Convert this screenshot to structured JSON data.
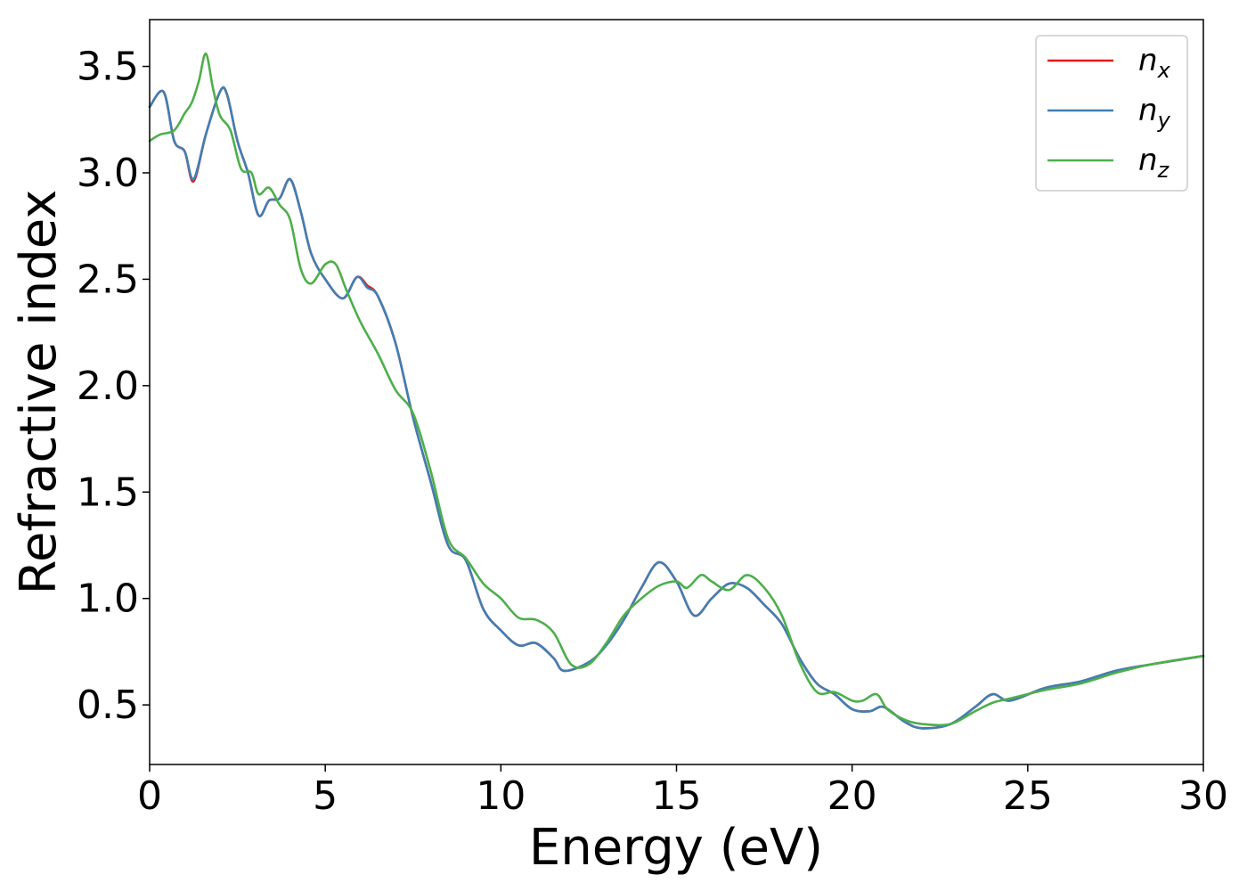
{
  "chart_data": {
    "type": "line",
    "title": "",
    "xlabel": "Energy (eV)",
    "ylabel": "Refractive index",
    "xlim": [
      0,
      30
    ],
    "ylim": [
      0.22,
      3.72
    ],
    "xticks": [
      0,
      5,
      10,
      15,
      20,
      25,
      30
    ],
    "xtick_labels": [
      "0",
      "5",
      "10",
      "15",
      "20",
      "25",
      "30"
    ],
    "yticks": [
      0.5,
      1.0,
      1.5,
      2.0,
      2.5,
      3.0,
      3.5
    ],
    "ytick_labels": [
      "0.5",
      "1.0",
      "1.5",
      "2.0",
      "2.5",
      "3.0",
      "3.5"
    ],
    "grid": false,
    "legend_position": "top-right",
    "series": [
      {
        "name": "n",
        "subscript": "x",
        "color": "#e41a1c",
        "x": [
          0,
          0.4,
          0.7,
          1.0,
          1.25,
          1.6,
          2.0,
          2.2,
          2.5,
          2.8,
          3.1,
          3.4,
          3.7,
          4.0,
          4.3,
          4.6,
          5.0,
          5.5,
          5.9,
          6.2,
          6.5,
          7.0,
          7.5,
          8.0,
          8.5,
          9.0,
          9.5,
          10.0,
          10.5,
          11.0,
          11.5,
          11.8,
          12.5,
          13.0,
          13.5,
          14.0,
          14.5,
          15.0,
          15.5,
          16.0,
          16.5,
          17.0,
          17.5,
          18.0,
          18.5,
          19.0,
          19.5,
          20.0,
          20.5,
          20.9,
          21.5,
          22.0,
          22.8,
          23.5,
          24.0,
          24.5,
          25.5,
          26.5,
          27.5,
          28.5,
          30.0
        ],
        "y": [
          3.31,
          3.38,
          3.15,
          3.1,
          2.96,
          3.18,
          3.38,
          3.37,
          3.15,
          3.0,
          2.8,
          2.87,
          2.88,
          2.97,
          2.82,
          2.62,
          2.5,
          2.41,
          2.51,
          2.47,
          2.42,
          2.2,
          1.85,
          1.55,
          1.25,
          1.18,
          0.95,
          0.85,
          0.78,
          0.79,
          0.72,
          0.66,
          0.7,
          0.78,
          0.9,
          1.05,
          1.17,
          1.08,
          0.92,
          1.0,
          1.07,
          1.05,
          0.97,
          0.88,
          0.72,
          0.6,
          0.55,
          0.48,
          0.47,
          0.49,
          0.42,
          0.39,
          0.41,
          0.49,
          0.55,
          0.52,
          0.58,
          0.61,
          0.66,
          0.69,
          0.73
        ]
      },
      {
        "name": "n",
        "subscript": "y",
        "color": "#3f7fb5",
        "x": [
          0,
          0.4,
          0.7,
          1.0,
          1.25,
          1.6,
          2.0,
          2.2,
          2.5,
          2.8,
          3.1,
          3.4,
          3.7,
          4.0,
          4.3,
          4.6,
          5.0,
          5.5,
          5.9,
          6.2,
          6.5,
          7.0,
          7.5,
          8.0,
          8.5,
          9.0,
          9.5,
          10.0,
          10.5,
          11.0,
          11.5,
          11.8,
          12.5,
          13.0,
          13.5,
          14.0,
          14.5,
          15.0,
          15.5,
          16.0,
          16.5,
          17.0,
          17.5,
          18.0,
          18.5,
          19.0,
          19.5,
          20.0,
          20.5,
          20.9,
          21.5,
          22.0,
          22.8,
          23.5,
          24.0,
          24.5,
          25.5,
          26.5,
          27.5,
          28.5,
          30.0
        ],
        "y": [
          3.31,
          3.38,
          3.15,
          3.1,
          2.97,
          3.18,
          3.38,
          3.37,
          3.15,
          3.0,
          2.8,
          2.87,
          2.88,
          2.97,
          2.82,
          2.62,
          2.5,
          2.41,
          2.51,
          2.46,
          2.42,
          2.2,
          1.85,
          1.55,
          1.25,
          1.18,
          0.95,
          0.85,
          0.78,
          0.79,
          0.72,
          0.66,
          0.7,
          0.78,
          0.9,
          1.05,
          1.17,
          1.08,
          0.92,
          1.0,
          1.07,
          1.05,
          0.97,
          0.88,
          0.72,
          0.6,
          0.55,
          0.48,
          0.47,
          0.49,
          0.42,
          0.39,
          0.41,
          0.49,
          0.55,
          0.52,
          0.58,
          0.61,
          0.66,
          0.69,
          0.73
        ]
      },
      {
        "name": "n",
        "subscript": "z",
        "color": "#4daf4a",
        "x": [
          0,
          0.3,
          0.7,
          1.0,
          1.2,
          1.4,
          1.6,
          1.8,
          2.0,
          2.3,
          2.6,
          2.9,
          3.1,
          3.4,
          3.7,
          4.0,
          4.3,
          4.6,
          5.0,
          5.3,
          5.6,
          6.0,
          6.5,
          7.0,
          7.5,
          8.0,
          8.5,
          9.0,
          9.5,
          10.0,
          10.5,
          11.0,
          11.5,
          12.0,
          12.5,
          13.0,
          13.5,
          14.0,
          14.5,
          15.0,
          15.3,
          15.7,
          16.0,
          16.5,
          17.0,
          17.5,
          18.0,
          18.5,
          19.0,
          19.5,
          20.0,
          20.3,
          20.7,
          21.0,
          21.5,
          22.0,
          22.8,
          23.5,
          24.0,
          24.5,
          25.5,
          26.5,
          27.5,
          28.5,
          30.0
        ],
        "y": [
          3.15,
          3.18,
          3.2,
          3.28,
          3.33,
          3.43,
          3.56,
          3.4,
          3.27,
          3.2,
          3.02,
          3.0,
          2.9,
          2.93,
          2.85,
          2.78,
          2.55,
          2.48,
          2.57,
          2.57,
          2.45,
          2.3,
          2.15,
          1.98,
          1.87,
          1.6,
          1.28,
          1.19,
          1.07,
          1.0,
          0.91,
          0.9,
          0.84,
          0.69,
          0.69,
          0.79,
          0.92,
          1.0,
          1.06,
          1.08,
          1.05,
          1.11,
          1.08,
          1.04,
          1.11,
          1.05,
          0.92,
          0.7,
          0.56,
          0.56,
          0.52,
          0.52,
          0.55,
          0.48,
          0.43,
          0.41,
          0.41,
          0.47,
          0.51,
          0.53,
          0.57,
          0.6,
          0.65,
          0.69,
          0.73
        ]
      }
    ]
  }
}
